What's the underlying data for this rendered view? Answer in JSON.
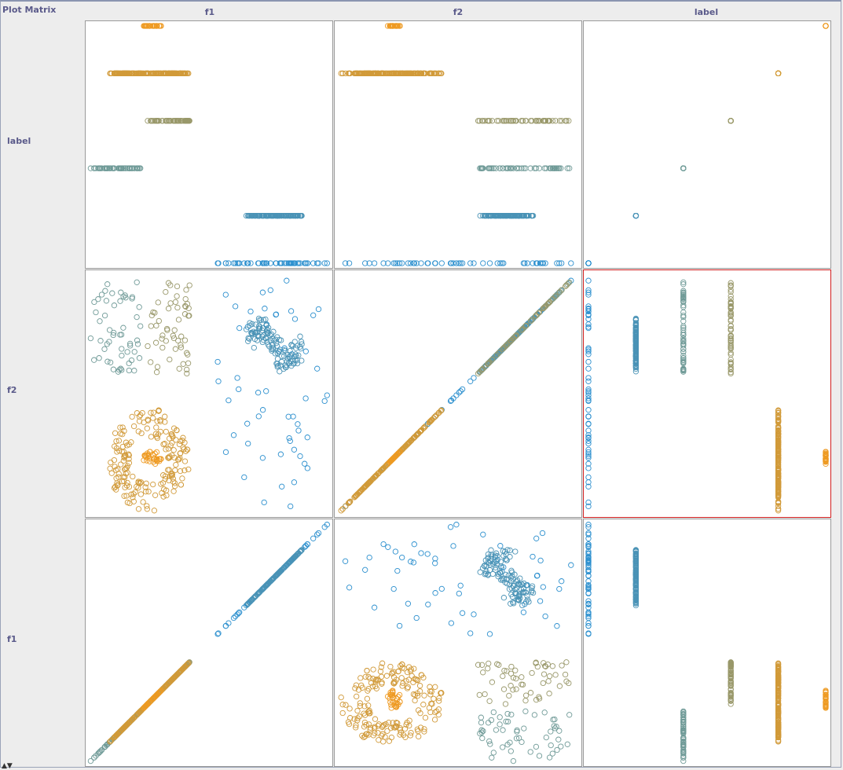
{
  "window": {
    "title": "Plot Matrix"
  },
  "columns": [
    "f1",
    "f2",
    "label"
  ],
  "rows": [
    "label",
    "f2",
    "f1"
  ],
  "selected_cell": {
    "row": "f2",
    "column": "label"
  },
  "colors": {
    "class0": "#2b8fce",
    "class1": "#4a93b6",
    "class2": "#6f9a97",
    "class3": "#99986a",
    "class4": "#d19a39",
    "class5": "#ee9a22",
    "selection": "#d22020"
  },
  "chart_data": {
    "type": "scatter",
    "title": "Plot Matrix",
    "variables": [
      "f1",
      "f2",
      "label"
    ],
    "label_values": [
      0,
      1,
      2,
      3,
      4,
      5
    ],
    "note": "Scatter-plot matrix of two features and a class label; points drawn as hollow circles colored by label.",
    "clusters": [
      {
        "label": 0,
        "f1_range": [
          0.53,
          1.0
        ],
        "f2_range": [
          0.02,
          0.98
        ],
        "shape": "sparse-uniform"
      },
      {
        "label": 1,
        "f1_range": [
          0.66,
          0.88
        ],
        "f2_range": [
          0.56,
          0.86
        ],
        "shape": "s-curve"
      },
      {
        "label": 2,
        "f1_range": [
          0.0,
          0.22
        ],
        "f2_range": [
          0.59,
          0.97
        ],
        "shape": "sparse-uniform"
      },
      {
        "label": 3,
        "f1_range": [
          0.24,
          0.42
        ],
        "f2_range": [
          0.58,
          0.97
        ],
        "shape": "sparse-uniform"
      },
      {
        "label": 4,
        "f1_range": [
          0.07,
          0.42
        ],
        "f2_range": [
          0.0,
          0.44
        ],
        "shape": "ring"
      },
      {
        "label": 5,
        "f1_range": [
          0.22,
          0.3
        ],
        "f2_range": [
          0.2,
          0.26
        ],
        "shape": "center-blob"
      }
    ]
  }
}
